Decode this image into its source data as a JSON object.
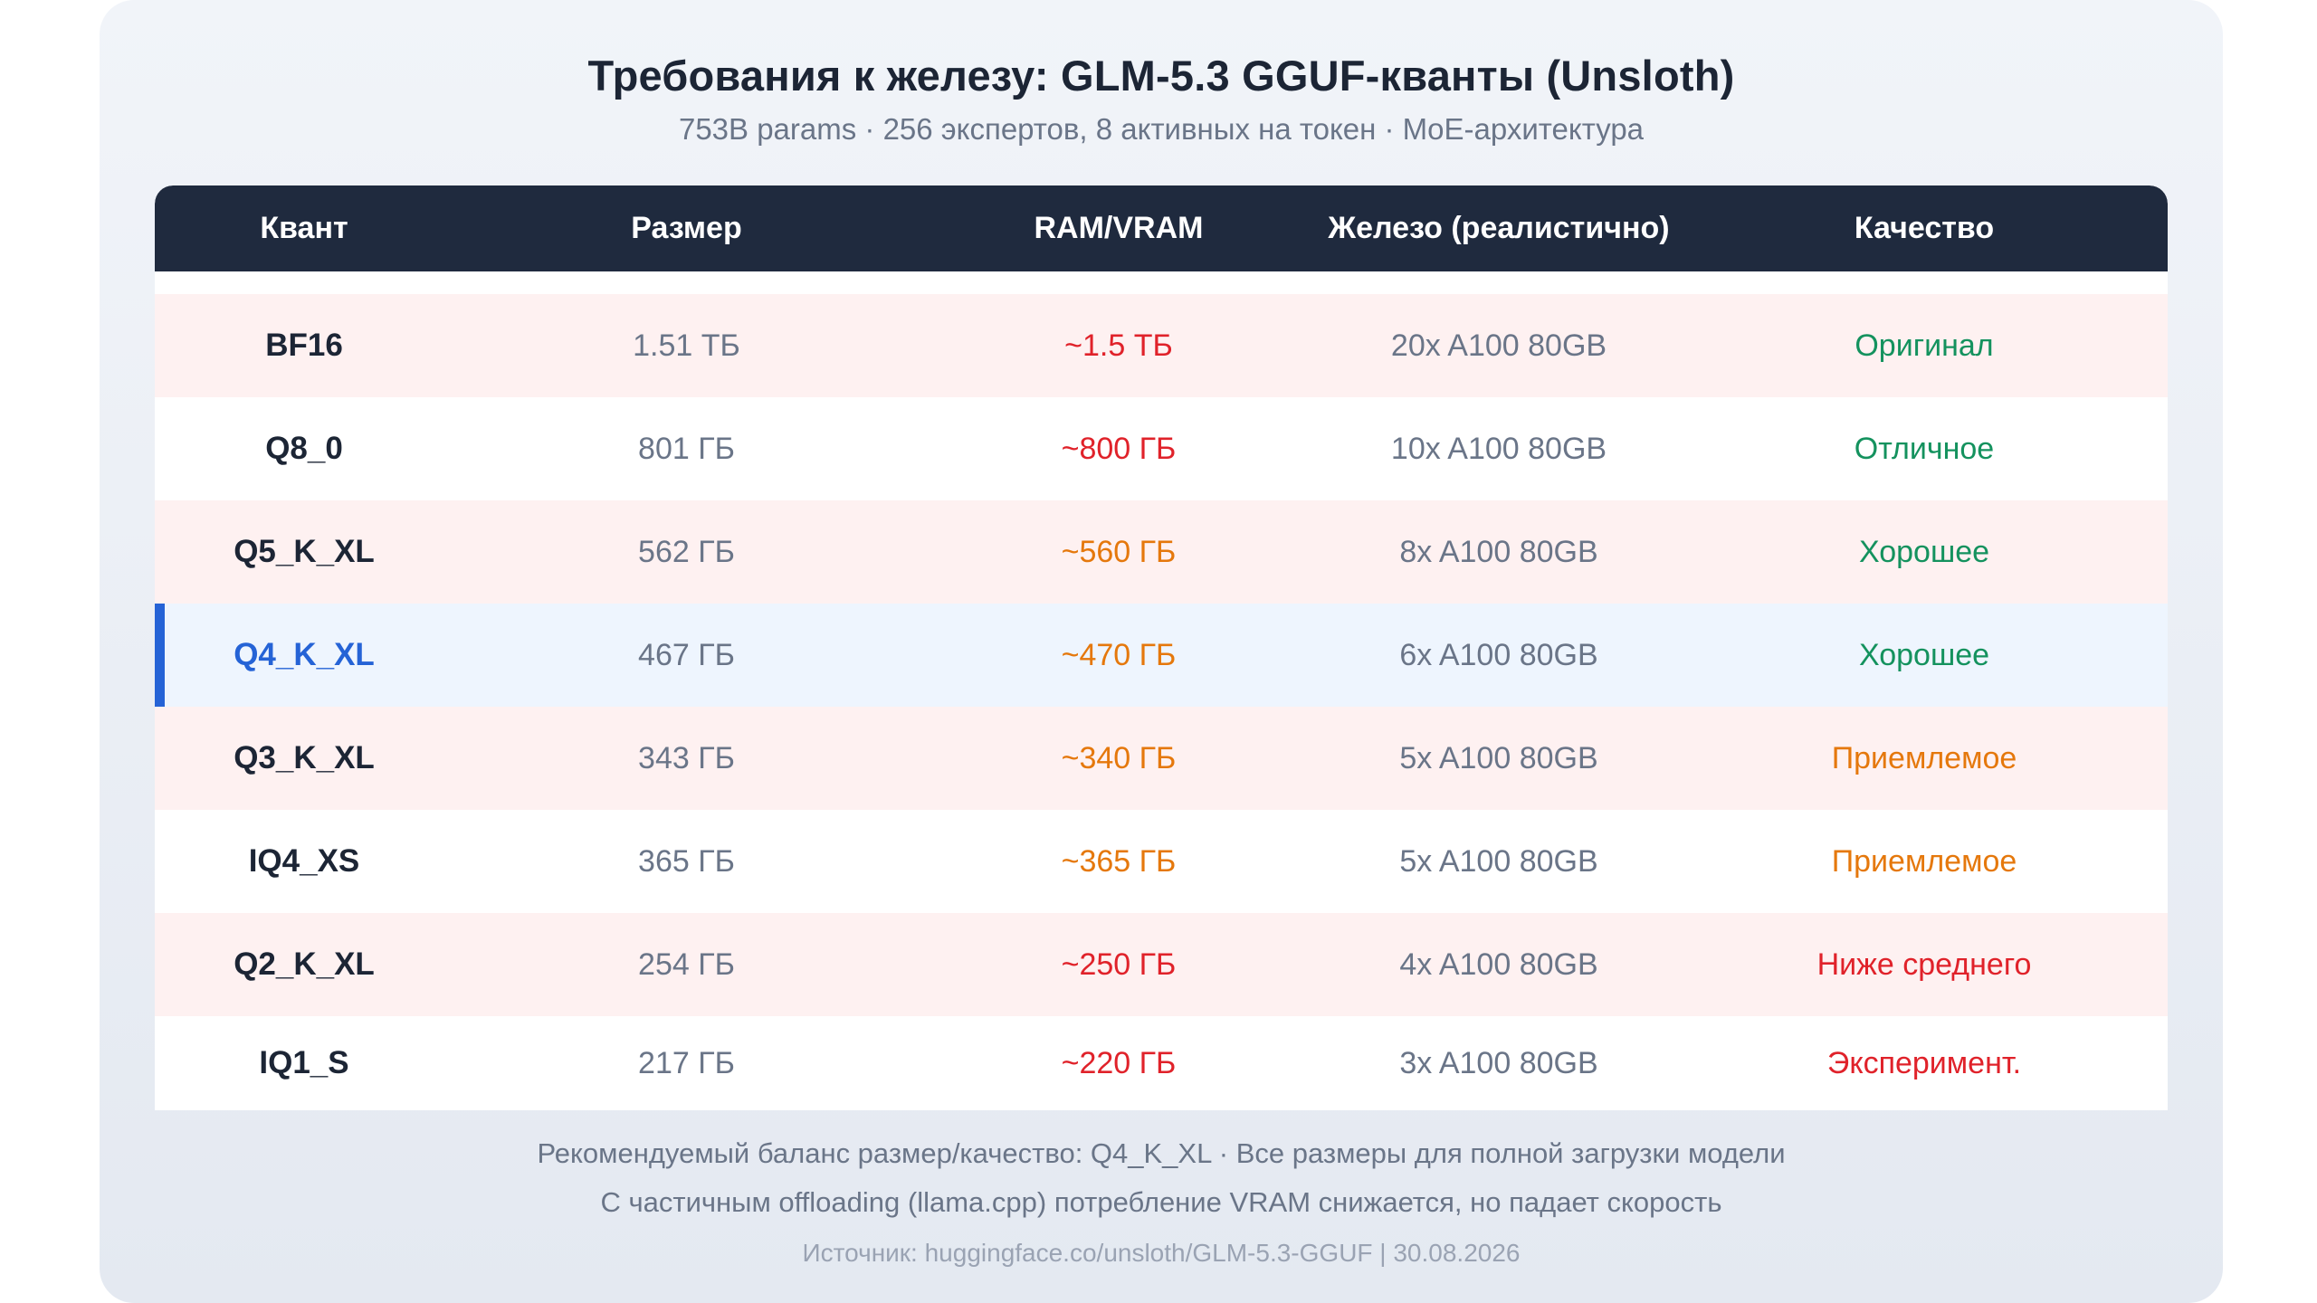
{
  "title": "Требования к железу: GLM-5.3 GGUF-кванты (Unsloth)",
  "subtitle": "753B params · 256 экспертов, 8 активных на токен · MoE-архитектура",
  "table": {
    "headers": [
      "Квант",
      "Размер",
      "RAM/VRAM",
      "Железо (реалистично)",
      "Качество"
    ],
    "rows": [
      {
        "quant": "BF16",
        "size": "1.51 ТБ",
        "ram": "~1.5 ТБ",
        "hardware": "20x A100 80GB",
        "quality": "Оригинал",
        "ram_color": "red",
        "quality_color": "green",
        "highlight": false
      },
      {
        "quant": "Q8_0",
        "size": "801 ГБ",
        "ram": "~800 ГБ",
        "hardware": "10x A100 80GB",
        "quality": "Отличное",
        "ram_color": "red",
        "quality_color": "green",
        "highlight": false
      },
      {
        "quant": "Q5_K_XL",
        "size": "562 ГБ",
        "ram": "~560 ГБ",
        "hardware": "8x A100 80GB",
        "quality": "Хорошее",
        "ram_color": "orange",
        "quality_color": "green",
        "highlight": false
      },
      {
        "quant": "Q4_K_XL",
        "size": "467 ГБ",
        "ram": "~470 ГБ",
        "hardware": "6x A100 80GB",
        "quality": "Хорошее",
        "ram_color": "orange",
        "quality_color": "green",
        "highlight": true
      },
      {
        "quant": "Q3_K_XL",
        "size": "343 ГБ",
        "ram": "~340 ГБ",
        "hardware": "5x A100 80GB",
        "quality": "Приемлемое",
        "ram_color": "orange",
        "quality_color": "orange",
        "highlight": false
      },
      {
        "quant": "IQ4_XS",
        "size": "365 ГБ",
        "ram": "~365 ГБ",
        "hardware": "5x A100 80GB",
        "quality": "Приемлемое",
        "ram_color": "orange",
        "quality_color": "orange",
        "highlight": false
      },
      {
        "quant": "Q2_K_XL",
        "size": "254 ГБ",
        "ram": "~250 ГБ",
        "hardware": "4x A100 80GB",
        "quality": "Ниже среднего",
        "ram_color": "red",
        "quality_color": "red",
        "highlight": false
      },
      {
        "quant": "IQ1_S",
        "size": "217 ГБ",
        "ram": "~220 ГБ",
        "hardware": "3x A100 80GB",
        "quality": "Эксперимент.",
        "ram_color": "red",
        "quality_color": "red",
        "highlight": false
      }
    ]
  },
  "footer": {
    "line1": "Рекомендуемый баланс размер/качество: Q4_K_XL · Все размеры для полной загрузки модели",
    "line2": "С частичным offloading (llama.cpp) потребление VRAM снижается, но падает скорость",
    "source": "Источник: huggingface.co/unsloth/GLM-5.3-GGUF | 30.08.2026"
  },
  "colors": {
    "header_bg": "#1f2a3e",
    "accent_blue": "#2563d6",
    "red": "#e0222a",
    "orange": "#e5780c",
    "green": "#14925e",
    "row_tint": "#fef1f1",
    "highlight_row": "#eef5fe"
  }
}
